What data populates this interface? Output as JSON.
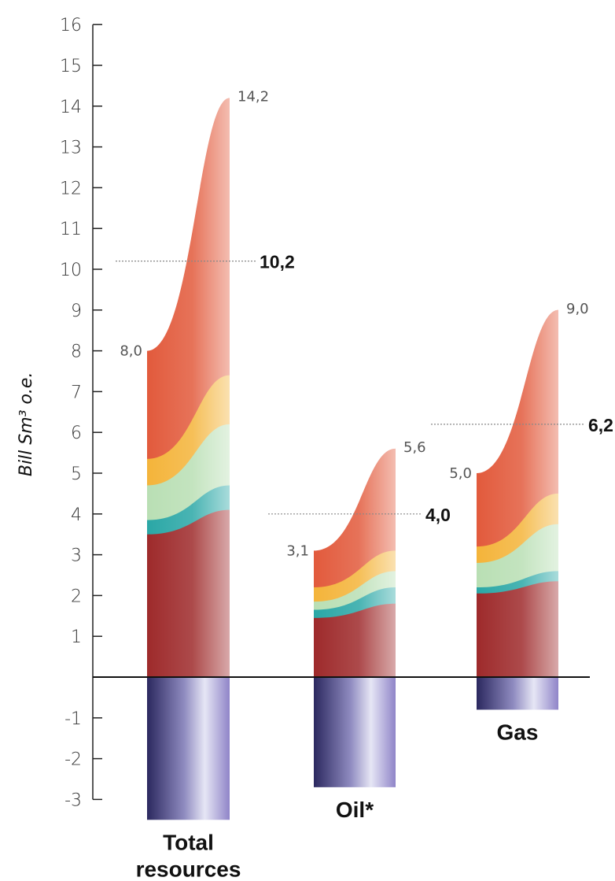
{
  "chart_data": {
    "type": "bar",
    "ylabel": "Bill Sm³ o.e.",
    "ylim": [
      -3,
      16
    ],
    "yticks": [
      16,
      15,
      14,
      13,
      12,
      11,
      10,
      9,
      8,
      7,
      6,
      5,
      4,
      3,
      2,
      1,
      -1,
      -2,
      -3
    ],
    "ytick_labels": [
      "16",
      "15",
      "14",
      "13",
      "12",
      "11",
      "10",
      "9",
      "8",
      "7",
      "6",
      "5",
      "4",
      "3",
      "2",
      "1",
      "-1",
      "-2",
      "-3"
    ],
    "categories": [
      {
        "label_lines": [
          "Total",
          "resources"
        ],
        "low": 8.0,
        "low_label": "8,0",
        "high": 14.2,
        "high_label": "14,2",
        "expected": 10.2,
        "expected_label": "10,2",
        "produced": -3.5,
        "bands_left": [
          3.5,
          3.85,
          4.7,
          5.35,
          8.0
        ],
        "bands_right": [
          4.1,
          4.7,
          6.2,
          7.4,
          14.2
        ]
      },
      {
        "label_lines": [
          "Oil*"
        ],
        "low": 3.1,
        "low_label": "3,1",
        "high": 5.6,
        "high_label": "5,6",
        "expected": 4.0,
        "expected_label": "4,0",
        "produced": -2.7,
        "bands_left": [
          1.45,
          1.65,
          1.85,
          2.2,
          3.1
        ],
        "bands_right": [
          1.8,
          2.2,
          2.6,
          3.1,
          5.6
        ]
      },
      {
        "label_lines": [
          "Gas"
        ],
        "low": 5.0,
        "low_label": "5,0",
        "high": 9.0,
        "high_label": "9,0",
        "expected": 6.2,
        "expected_label": "6,2",
        "produced": -0.8,
        "bands_left": [
          2.05,
          2.2,
          2.8,
          3.2,
          5.0
        ],
        "bands_right": [
          2.35,
          2.6,
          3.75,
          4.5,
          9.0
        ]
      }
    ],
    "band_colors": [
      "#9e2a2b",
      "#2aa7a6",
      "#b9dfb4",
      "#f4b43a",
      "#e25a3c"
    ],
    "produced_color": "#2e2a6b"
  }
}
